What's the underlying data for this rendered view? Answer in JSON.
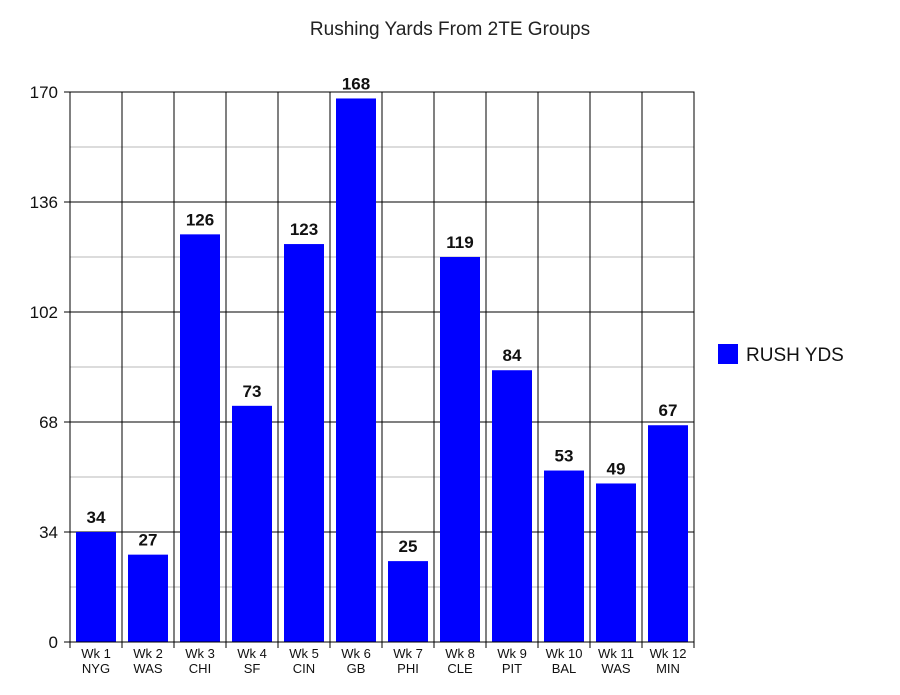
{
  "chart_data": {
    "type": "bar",
    "title": "Rushing Yards From 2TE Groups",
    "xlabel": "",
    "ylabel": "",
    "categories": [
      [
        "Wk 1",
        "NYG"
      ],
      [
        "Wk 2",
        "WAS"
      ],
      [
        "Wk 3",
        "CHI"
      ],
      [
        "Wk 4",
        "SF"
      ],
      [
        "Wk 5",
        "CIN"
      ],
      [
        "Wk 6",
        "GB"
      ],
      [
        "Wk 7",
        "PHI"
      ],
      [
        "Wk 8",
        "CLE"
      ],
      [
        "Wk 9",
        "PIT"
      ],
      [
        "Wk 10",
        "BAL"
      ],
      [
        "Wk 11",
        "WAS"
      ],
      [
        "Wk 12",
        "MIN"
      ]
    ],
    "series": [
      {
        "name": "RUSH YDS",
        "color": "#0000ff",
        "values": [
          34,
          27,
          126,
          73,
          123,
          168,
          25,
          119,
          84,
          53,
          49,
          67
        ]
      }
    ],
    "ylim": [
      0,
      170
    ],
    "yticks": [
      0,
      34,
      68,
      102,
      136,
      170
    ],
    "grid": true,
    "legend": "right",
    "data_labels": true
  }
}
